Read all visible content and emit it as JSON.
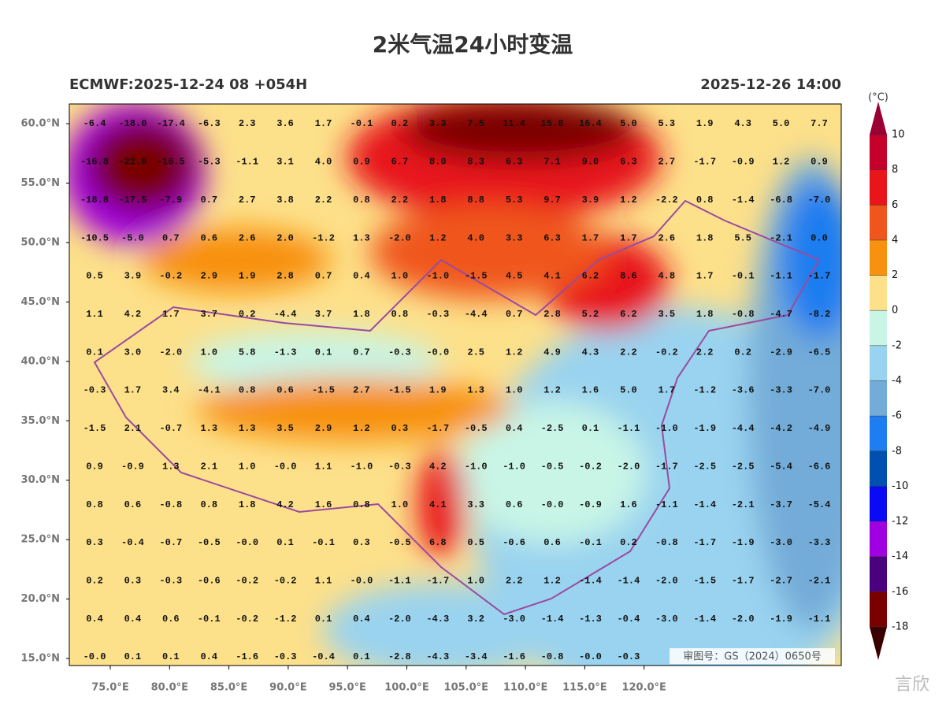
{
  "header": {
    "title": "2米气温24小时变温",
    "left": "ECMWF:2025-12-24 08 +054H",
    "right": "2025-12-26 14:00"
  },
  "map": {
    "lat_labels": [
      "60.0°N",
      "55.0°N",
      "50.0°N",
      "45.0°N",
      "40.0°N",
      "35.0°N",
      "30.0°N",
      "25.0°N",
      "20.0°N",
      "15.0°N"
    ],
    "lon_labels": [
      "75.0°E",
      "80.0°E",
      "85.0°E",
      "90.0°E",
      "95.0°E",
      "100.0°E",
      "105.0°E",
      "110.0°E",
      "115.0°E",
      "120.0°E"
    ],
    "grid_values": [
      [
        "-6.4",
        "-18.0",
        "-17.4",
        "-6.3",
        "2.3",
        "3.6",
        "1.7",
        "-0.1",
        "0.2",
        "3.3",
        "7.5",
        "11.4",
        "15.8",
        "16.4",
        "5.0",
        "5.3",
        "1.9",
        "4.3",
        "5.0",
        "7.7"
      ],
      [
        "-16.8",
        "-22.0",
        "-16.5",
        "-5.3",
        "-1.1",
        "3.1",
        "4.0",
        "0.9",
        "6.7",
        "8.0",
        "8.3",
        "6.3",
        "7.1",
        "9.0",
        "6.3",
        "2.7",
        "-1.7",
        "-0.9",
        "1.2",
        "0.9"
      ],
      [
        "-18.8",
        "-17.5",
        "-7.9",
        "0.7",
        "2.7",
        "3.8",
        "2.2",
        "0.8",
        "2.2",
        "1.8",
        "8.8",
        "5.3",
        "9.7",
        "3.9",
        "1.2",
        "-2.2",
        "0.8",
        "-1.4",
        "-6.8",
        "-7.0"
      ],
      [
        "-10.5",
        "-5.0",
        "0.7",
        "0.6",
        "2.6",
        "2.0",
        "-1.2",
        "1.3",
        "-2.0",
        "1.2",
        "4.0",
        "3.3",
        "6.3",
        "1.7",
        "1.7",
        "2.6",
        "1.8",
        "5.5",
        "-2.1",
        "0.0"
      ],
      [
        "0.5",
        "3.9",
        "-0.2",
        "2.9",
        "1.9",
        "2.8",
        "0.7",
        "0.4",
        "1.0",
        "-1.0",
        "-1.5",
        "4.5",
        "4.1",
        "6.2",
        "8.6",
        "4.8",
        "1.7",
        "-0.1",
        "-1.1",
        "-1.7"
      ],
      [
        "1.1",
        "4.2",
        "1.7",
        "3.7",
        "0.2",
        "-4.4",
        "3.7",
        "1.8",
        "0.8",
        "-0.3",
        "-4.4",
        "0.7",
        "2.8",
        "5.2",
        "6.2",
        "3.5",
        "1.8",
        "-0.8",
        "-4.7",
        "-8.2"
      ],
      [
        "0.1",
        "3.0",
        "-2.0",
        "1.0",
        "5.8",
        "-1.3",
        "0.1",
        "0.7",
        "-0.3",
        "-0.0",
        "2.5",
        "1.2",
        "4.9",
        "4.3",
        "2.2",
        "-0.2",
        "2.2",
        "0.2",
        "-2.9",
        "-6.5"
      ],
      [
        "-0.3",
        "1.7",
        "3.4",
        "-4.1",
        "0.8",
        "0.6",
        "-1.5",
        "2.7",
        "-1.5",
        "1.9",
        "1.3",
        "1.0",
        "1.2",
        "1.6",
        "5.0",
        "1.7",
        "-1.2",
        "-3.6",
        "-3.3",
        "-7.0"
      ],
      [
        "-1.5",
        "2.1",
        "-0.7",
        "1.3",
        "1.3",
        "3.5",
        "2.9",
        "1.2",
        "0.3",
        "-1.7",
        "-0.5",
        "0.4",
        "-2.5",
        "0.1",
        "-1.1",
        "-1.0",
        "-1.9",
        "-4.4",
        "-4.2",
        "-4.9"
      ],
      [
        "0.9",
        "-0.9",
        "1.3",
        "2.1",
        "1.0",
        "-0.0",
        "1.1",
        "-1.0",
        "-0.3",
        "4.2",
        "-1.0",
        "-1.0",
        "-0.5",
        "-0.2",
        "-2.0",
        "-1.7",
        "-2.5",
        "-2.5",
        "-5.4",
        "-6.6"
      ],
      [
        "0.8",
        "0.6",
        "-0.8",
        "0.8",
        "1.8",
        "4.2",
        "1.6",
        "0.8",
        "1.0",
        "4.1",
        "3.3",
        "0.6",
        "-0.0",
        "-0.9",
        "1.6",
        "-1.1",
        "-1.4",
        "-2.1",
        "-3.7",
        "-5.4"
      ],
      [
        "0.3",
        "-0.4",
        "-0.7",
        "-0.5",
        "-0.0",
        "0.1",
        "-0.1",
        "0.3",
        "-0.5",
        "6.8",
        "0.5",
        "-0.6",
        "0.6",
        "-0.1",
        "0.2",
        "-0.8",
        "-1.7",
        "-1.9",
        "-3.0",
        "-3.3"
      ],
      [
        "0.2",
        "0.3",
        "-0.3",
        "-0.6",
        "-0.2",
        "-0.2",
        "1.1",
        "-0.0",
        "-1.1",
        "-1.7",
        "1.0",
        "2.2",
        "1.2",
        "-1.4",
        "-1.4",
        "-2.0",
        "-1.5",
        "-1.7",
        "-2.7",
        "-2.1"
      ],
      [
        "0.4",
        "0.4",
        "0.6",
        "-0.1",
        "-0.2",
        "-1.2",
        "0.1",
        "0.4",
        "-2.0",
        "-4.3",
        "3.2",
        "-3.0",
        "-1.4",
        "-1.3",
        "-0.4",
        "-3.0",
        "-1.4",
        "-2.0",
        "-1.9",
        "-1.1"
      ],
      [
        "-0.0",
        "0.1",
        "0.1",
        "0.4",
        "-1.6",
        "-0.3",
        "-0.4",
        "0.1",
        "-2.8",
        "-4.3",
        "-3.4",
        "-1.6",
        "-0.8",
        "-0.0",
        "-0.3"
      ]
    ],
    "approval": "审图号：GS（2024）0650号"
  },
  "colorbar": {
    "unit": "(°C)",
    "labels": [
      "10",
      "8",
      "6",
      "4",
      "2",
      "0",
      "-2",
      "-4",
      "-6",
      "-8",
      "-10",
      "-12",
      "-14",
      "-16",
      "-18"
    ],
    "colors": [
      "#9b0034",
      "#c4002b",
      "#e8151b",
      "#f0561c",
      "#f89010",
      "#fde08a",
      "#c8f5e6",
      "#9ad3ef",
      "#73acd8",
      "#1e7df0",
      "#0050b0",
      "#0a0af5",
      "#a000e0",
      "#4b0080",
      "#7a0000",
      "#3a0000"
    ]
  },
  "logo_text": "言欣"
}
